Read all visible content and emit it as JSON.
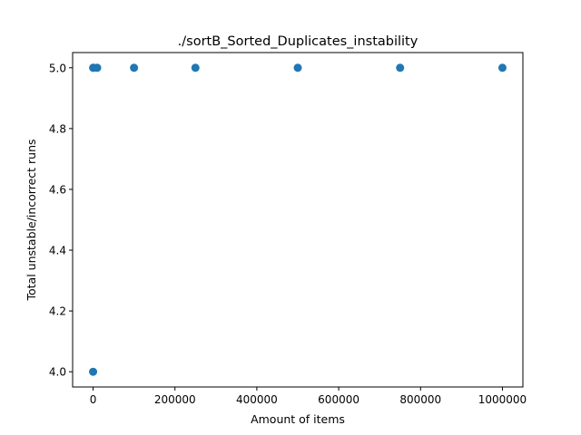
{
  "chart_data": {
    "type": "scatter",
    "title": "./sortB_Sorted_Duplicates_instability",
    "xlabel": "Amount of items",
    "ylabel": "Total unstable/incorrect runs",
    "xlim": [
      -50000,
      1050000
    ],
    "ylim": [
      3.95,
      5.05
    ],
    "xticks": [
      0,
      200000,
      400000,
      600000,
      800000,
      1000000
    ],
    "xtick_labels": [
      "0",
      "200000",
      "400000",
      "600000",
      "800000",
      "1000000"
    ],
    "yticks": [
      4.0,
      4.2,
      4.4,
      4.6,
      4.8,
      5.0
    ],
    "ytick_labels": [
      "4.0",
      "4.2",
      "4.4",
      "4.6",
      "4.8",
      "5.0"
    ],
    "grid": false,
    "marker_color": "#1f77b4",
    "series": [
      {
        "x": [
          10,
          100,
          1000,
          10000,
          100000,
          250000,
          500000,
          750000,
          1000000
        ],
        "y": [
          4,
          5,
          5,
          5,
          5,
          5,
          5,
          5,
          5
        ]
      }
    ]
  }
}
